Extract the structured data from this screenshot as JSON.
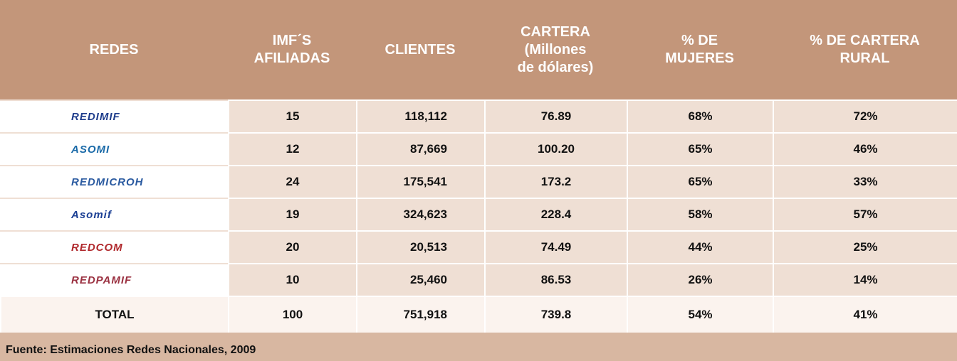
{
  "table": {
    "header": [
      [
        "REDES"
      ],
      [
        "IMF´S",
        "AFILIADAS"
      ],
      [
        "CLIENTES"
      ],
      [
        "CARTERA",
        "(Millones",
        "de dólares)"
      ],
      [
        "% DE",
        "MUJERES"
      ],
      [
        "% DE CARTERA",
        "RURAL"
      ]
    ],
    "rows": [
      [
        "REDIMIF",
        "15",
        "118,112",
        "76.89",
        "68%",
        "72%"
      ],
      [
        "ASOMI",
        "12",
        "87,669",
        "100.20",
        "65%",
        "46%"
      ],
      [
        "REDMICROH",
        "24",
        "175,541",
        "173.2",
        "65%",
        "33%"
      ],
      [
        "Asomif",
        "19",
        "324,623",
        "228.4",
        "58%",
        "57%"
      ],
      [
        "REDCOM",
        "20",
        "20,513",
        "74.49",
        "44%",
        "25%"
      ],
      [
        "REDPAMIF",
        "10",
        "25,460",
        "86.53",
        "26%",
        "14%"
      ],
      [
        "TOTAL",
        "100",
        "751,918",
        "739.8",
        "54%",
        "41%"
      ]
    ],
    "footer": "Fuente: Estimaciones Redes Nacionales, 2009"
  }
}
